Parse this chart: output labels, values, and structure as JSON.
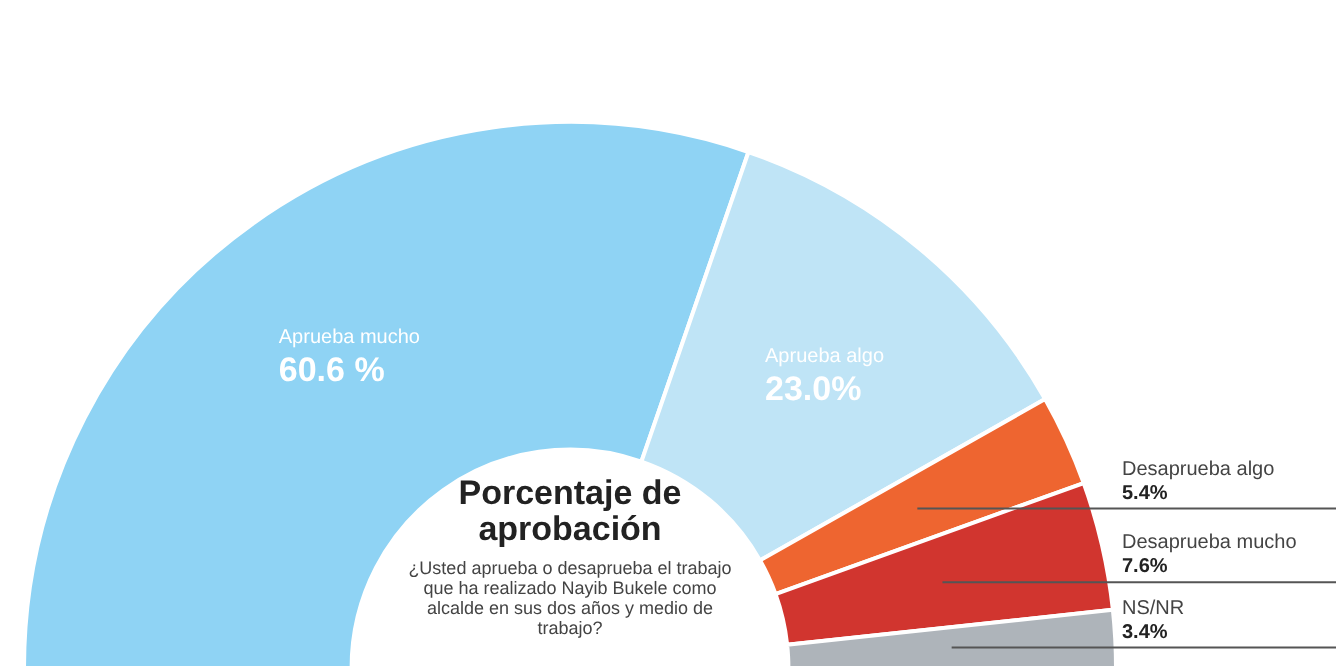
{
  "chart_data": {
    "type": "donut",
    "title": "Porcentaje de aprobación",
    "subtitle": "¿Usted aprueba o desaprueba el trabajo que ha realizado Nayib Bukele como alcalde en sus dos años y medio de trabajo?",
    "categories": [
      "Aprueba mucho",
      "Aprueba algo",
      "Desaprueba algo",
      "Desaprueba mucho",
      "NS/NR"
    ],
    "values": [
      60.6,
      23.0,
      5.4,
      7.6,
      3.4
    ],
    "value_labels": [
      "60.6 %",
      "23.0%",
      "5.4%",
      "7.6%",
      "3.4%"
    ],
    "colors": [
      "#8fd3f4",
      "#bfe4f6",
      "#ee6530",
      "#d1352f",
      "#aeb4ba"
    ]
  }
}
